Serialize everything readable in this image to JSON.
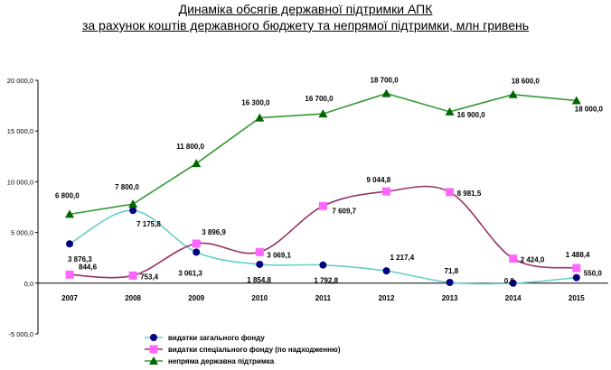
{
  "title": "Динаміка обсягів державної підтримки АПК",
  "subtitle": "за рахунок коштів державного бюджету та непрямої підтримки, млн гривень",
  "chart_data": {
    "type": "line",
    "title": "Динаміка обсягів державної підтримки АПК",
    "subtitle": "за рахунок коштів державного бюджету та непрямої підтримки, млн гривень",
    "x": [
      "2007",
      "2008",
      "2009",
      "2010",
      "2011",
      "2012",
      "2013",
      "2014",
      "2015"
    ],
    "ylim": [
      -5000,
      20000
    ],
    "yticks": [
      -5000,
      0,
      5000,
      10000,
      15000,
      20000
    ],
    "ytick_labels": [
      "-5 000,0",
      "0,0",
      "5 000,0",
      "10 000,0",
      "15 000,0",
      "20 000,0"
    ],
    "grid": false,
    "legend_position": "bottom-left",
    "series": [
      {
        "name": "видатки загального фонду",
        "values": [
          3876.3,
          7175.8,
          3061.3,
          1854.8,
          1792.8,
          1217.4,
          71.8,
          0.0,
          550.0
        ],
        "labels": [
          "3 876,3",
          "7 175,8",
          "3 061,3",
          "1 854,8",
          "1 792,8",
          "1 217,4",
          "71,8",
          "0,0",
          "550,0"
        ],
        "line_color": "#66CCCC",
        "marker_color": "#000080",
        "marker": "circle",
        "smooth": true
      },
      {
        "name": "видатки спеціального фонду (по надходженню)",
        "values": [
          844.6,
          753.4,
          3896.9,
          3069.1,
          7609.7,
          9044.8,
          8981.5,
          2424.0,
          1488.4
        ],
        "labels": [
          "844,6",
          "753,4",
          "3 896,9",
          "3 069,1",
          "7 609,7",
          "9 044,8",
          "8 981,5",
          "2 424,0",
          "1 488,4"
        ],
        "line_color": "#993366",
        "marker_color": "#FF66FF",
        "marker": "square",
        "smooth": true
      },
      {
        "name": "непряма державна підтримка",
        "values": [
          6800.0,
          7800.0,
          11800.0,
          16300.0,
          16700.0,
          18700.0,
          16900.0,
          18600.0,
          18000.0
        ],
        "labels": [
          "6 800,0",
          "7 800,0",
          "11 800,0",
          "16 300,0",
          "16 700,0",
          "18 700,0",
          "16 900,0",
          "18 600,0",
          "18 000,0"
        ],
        "line_color": "#339933",
        "marker_color": "#006600",
        "marker": "triangle",
        "smooth": false
      }
    ]
  }
}
